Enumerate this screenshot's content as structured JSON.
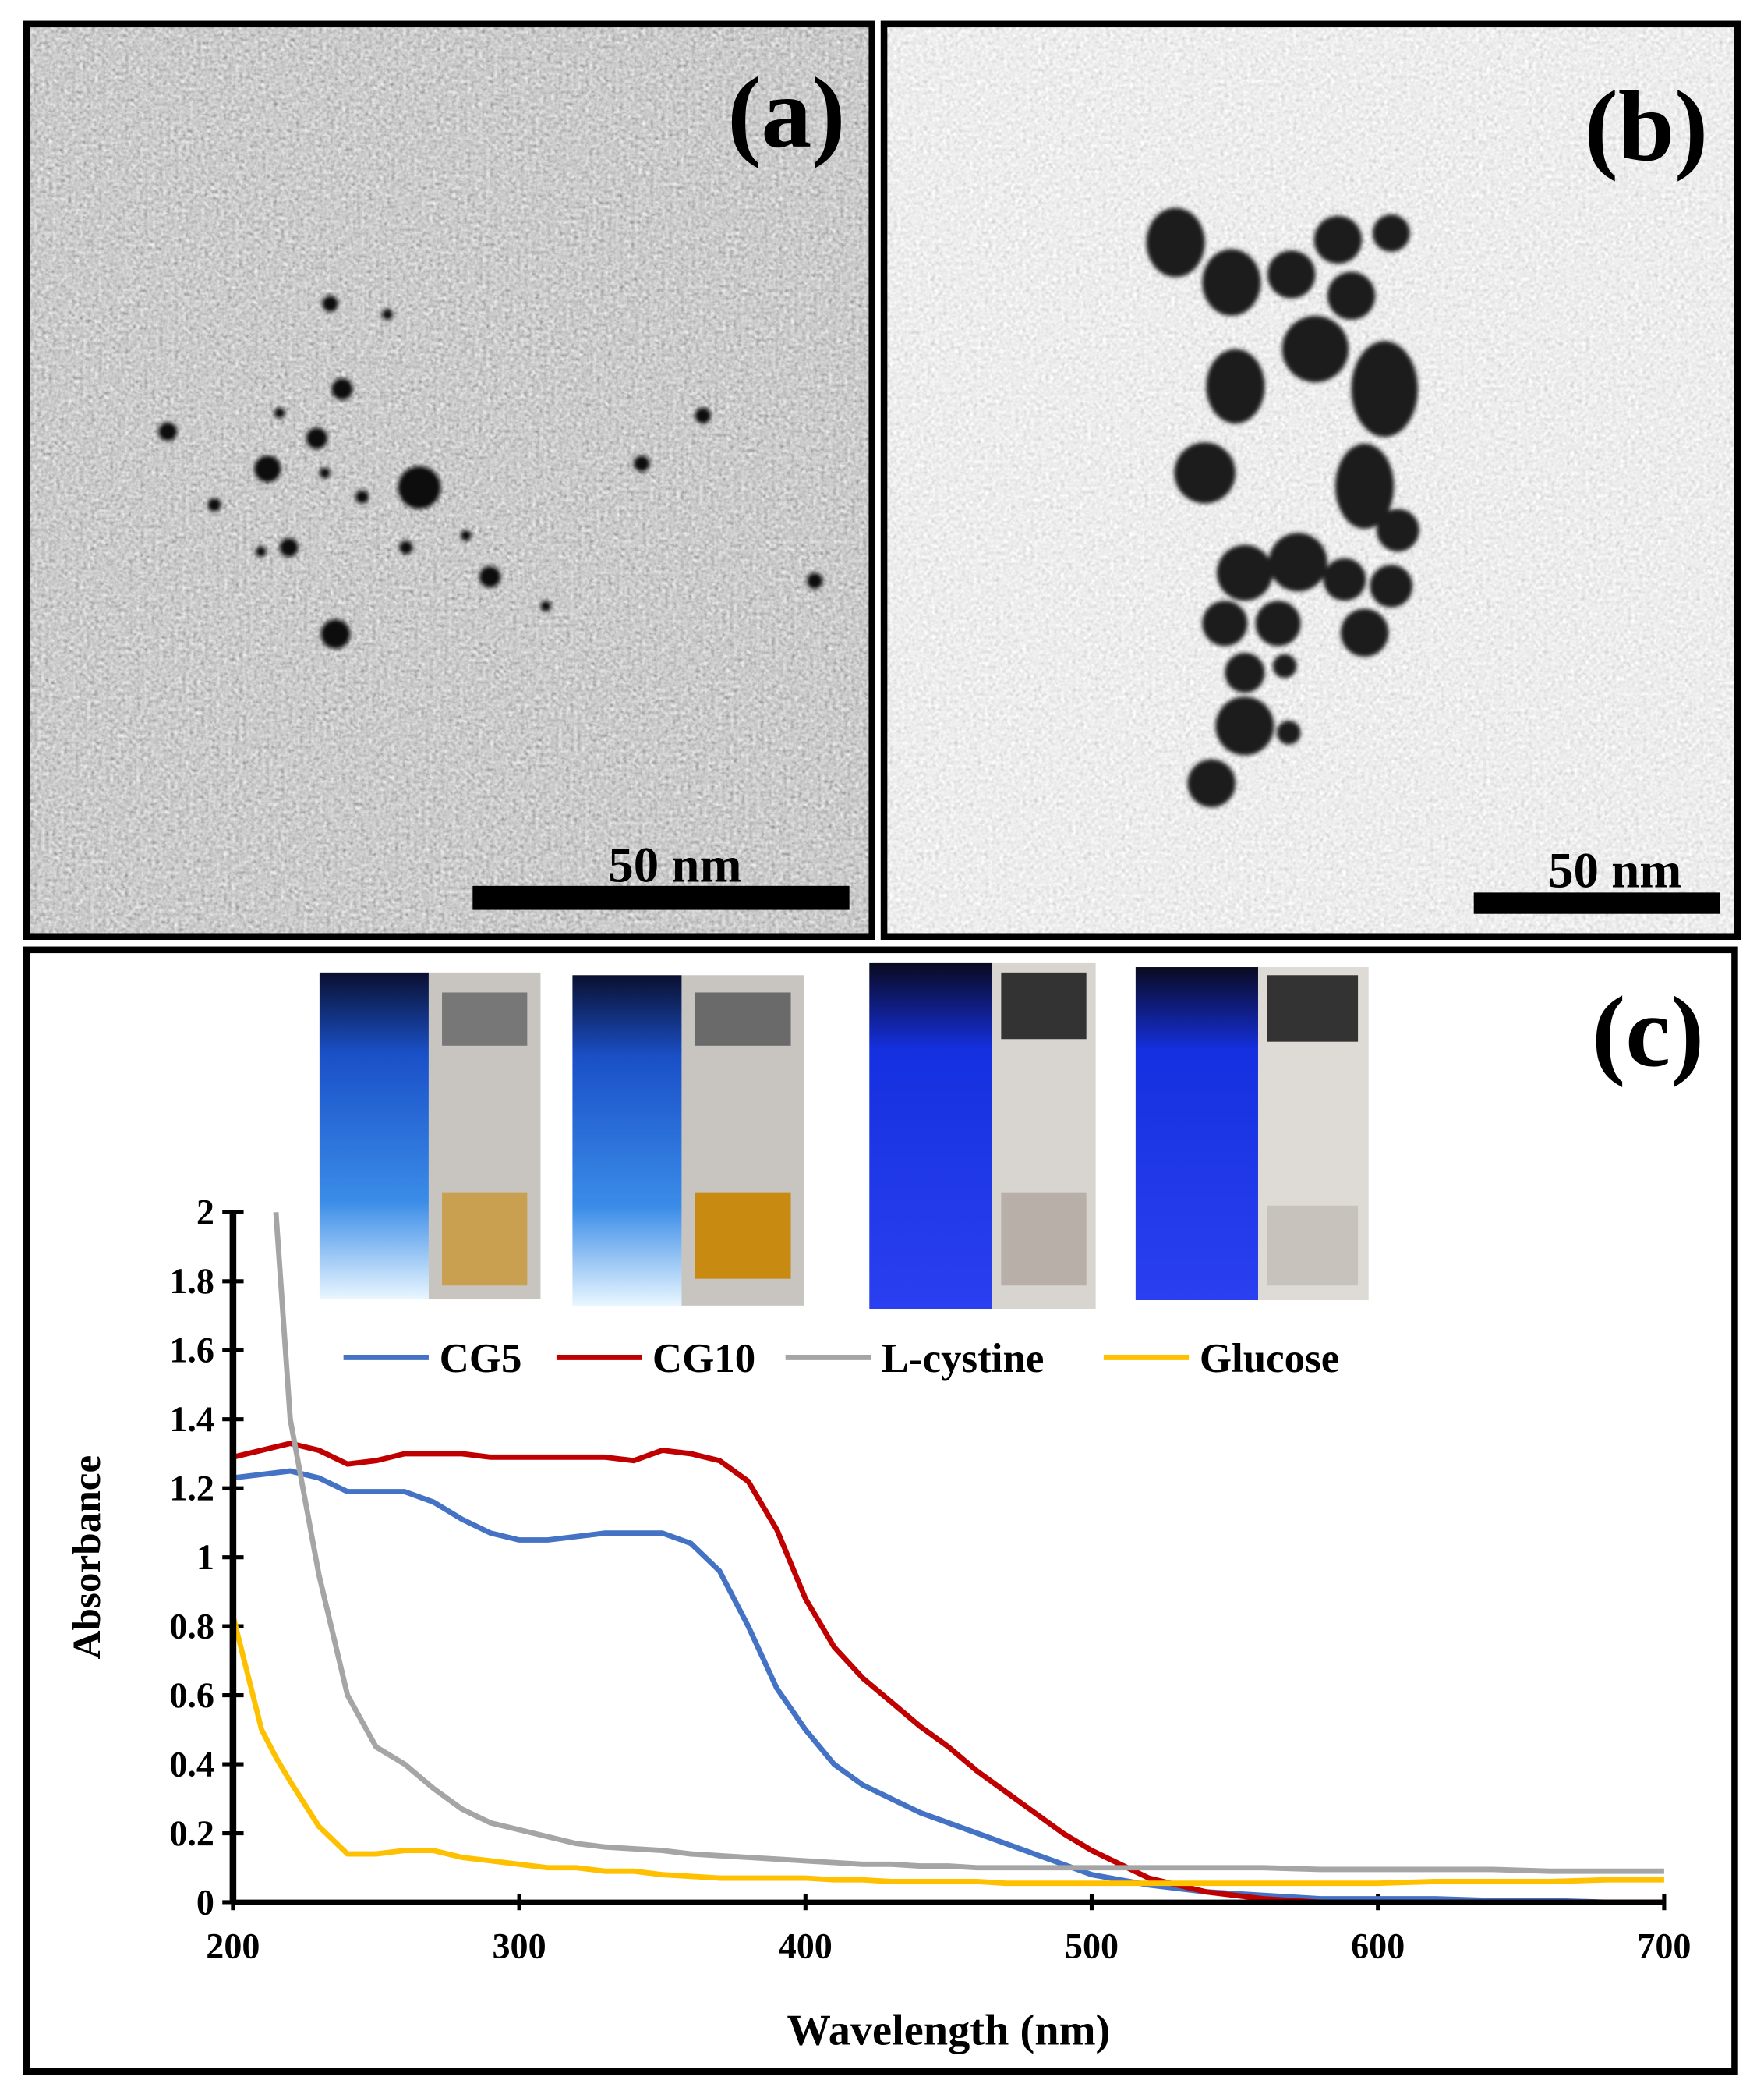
{
  "panels": [
    {
      "label": "(a)",
      "scale_bar": "50 nm"
    },
    {
      "label": "(b)",
      "scale_bar": "50 nm"
    }
  ],
  "chart_data": {
    "type": "line",
    "panel_label": "(c)",
    "x_label": "Wavelength (nm)",
    "y_label": "Absorbance",
    "x": [
      200,
      210,
      215,
      220,
      230,
      240,
      250,
      260,
      270,
      280,
      290,
      300,
      310,
      320,
      330,
      340,
      350,
      360,
      370,
      380,
      390,
      400,
      410,
      420,
      430,
      440,
      450,
      460,
      470,
      480,
      490,
      500,
      520,
      540,
      560,
      580,
      600,
      620,
      640,
      660,
      680,
      700
    ],
    "series": [
      {
        "name": "CG5",
        "color": "#4472c4",
        "values": [
          1.23,
          1.24,
          1.245,
          1.25,
          1.23,
          1.19,
          1.19,
          1.19,
          1.16,
          1.11,
          1.07,
          1.05,
          1.05,
          1.06,
          1.07,
          1.07,
          1.07,
          1.04,
          0.96,
          0.8,
          0.62,
          0.5,
          0.4,
          0.34,
          0.3,
          0.26,
          0.23,
          0.2,
          0.17,
          0.14,
          0.11,
          0.08,
          0.05,
          0.03,
          0.02,
          0.01,
          0.01,
          0.01,
          0.005,
          0.005,
          0,
          0
        ]
      },
      {
        "name": "CG10",
        "color": "#c00000",
        "values": [
          1.29,
          1.31,
          1.32,
          1.33,
          1.31,
          1.27,
          1.28,
          1.3,
          1.3,
          1.3,
          1.29,
          1.29,
          1.29,
          1.29,
          1.29,
          1.28,
          1.31,
          1.3,
          1.28,
          1.22,
          1.08,
          0.88,
          0.74,
          0.65,
          0.58,
          0.51,
          0.45,
          0.38,
          0.32,
          0.26,
          0.2,
          0.15,
          0.07,
          0.03,
          0.01,
          0,
          0,
          0,
          0,
          0,
          0,
          0
        ]
      },
      {
        "name": "L-cystine",
        "color": "#a5a5a5",
        "values": [
          null,
          null,
          2.0,
          1.4,
          0.95,
          0.6,
          0.45,
          0.4,
          0.33,
          0.27,
          0.23,
          0.21,
          0.19,
          0.17,
          0.16,
          0.155,
          0.15,
          0.14,
          0.135,
          0.13,
          0.125,
          0.12,
          0.115,
          0.11,
          0.11,
          0.105,
          0.105,
          0.1,
          0.1,
          0.1,
          0.1,
          0.1,
          0.1,
          0.1,
          0.1,
          0.095,
          0.095,
          0.095,
          0.095,
          0.09,
          0.09,
          0.09
        ]
      },
      {
        "name": "Glucose",
        "color": "#ffc000",
        "values": [
          0.83,
          0.5,
          0.42,
          0.35,
          0.22,
          0.14,
          0.14,
          0.15,
          0.15,
          0.13,
          0.12,
          0.11,
          0.1,
          0.1,
          0.09,
          0.09,
          0.08,
          0.075,
          0.07,
          0.07,
          0.07,
          0.07,
          0.065,
          0.065,
          0.06,
          0.06,
          0.06,
          0.06,
          0.055,
          0.055,
          0.055,
          0.055,
          0.055,
          0.055,
          0.055,
          0.055,
          0.055,
          0.06,
          0.06,
          0.06,
          0.065,
          0.065
        ]
      }
    ],
    "xlim": [
      200,
      700
    ],
    "xticks": [
      200,
      300,
      400,
      500,
      600,
      700
    ],
    "ylim": [
      0,
      2
    ],
    "yticks": [
      0,
      0.2,
      0.4,
      0.6,
      0.8,
      1,
      1.2,
      1.4,
      1.6,
      1.8,
      2
    ],
    "grid": false,
    "legend": "top"
  }
}
